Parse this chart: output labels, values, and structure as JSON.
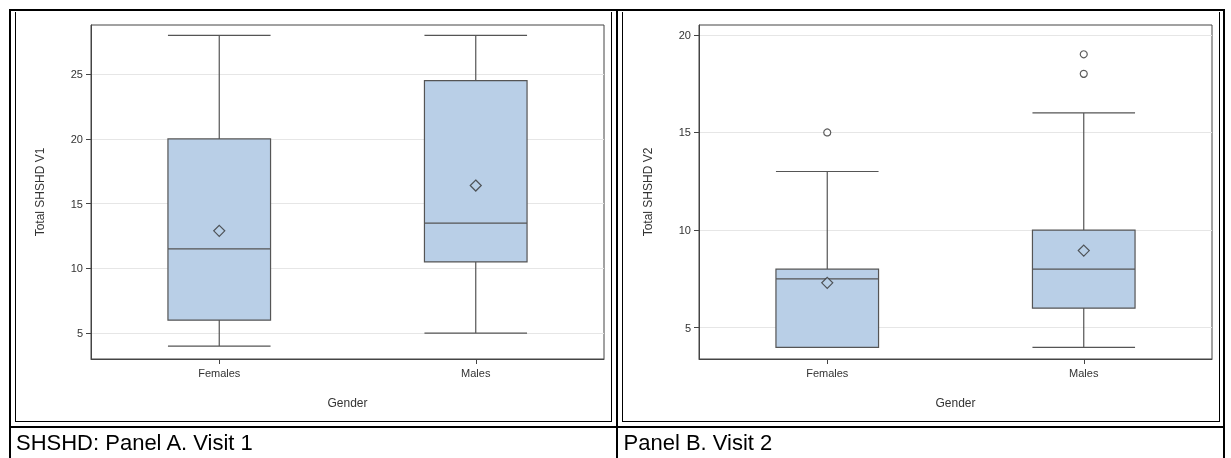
{
  "chart_data": [
    {
      "type": "box",
      "xlabel": "Gender",
      "ylabel": "Total SHSHD V1",
      "categories": [
        "Females",
        "Males"
      ],
      "color": "#b9cfe7",
      "ylim": [
        3,
        28.8
      ],
      "yticks": [
        5,
        10,
        15,
        20,
        25
      ],
      "grid": "y",
      "boxes": [
        {
          "low": 4,
          "q1": 6,
          "median": 11.5,
          "q3": 20,
          "high": 28,
          "mean": 12.9
        },
        {
          "low": 5,
          "q1": 10.5,
          "median": 13.5,
          "q3": 24.5,
          "high": 28,
          "mean": 16.4
        }
      ],
      "annotations": [
        "SHSHD: Panel A. Visit 1"
      ]
    },
    {
      "type": "box",
      "xlabel": "Gender",
      "ylabel": "Total SHSHD V2",
      "categories": [
        "Females",
        "Males"
      ],
      "color": "#b9cfe7",
      "ylim": [
        3.4,
        20.5
      ],
      "yticks": [
        5,
        10,
        15,
        20
      ],
      "grid": "y",
      "boxes": [
        {
          "low": 4,
          "q1": 4,
          "median": 7.5,
          "q3": 8,
          "high": 13,
          "mean": 7.3,
          "outliers": [
            15
          ]
        },
        {
          "low": 4,
          "q1": 6,
          "median": 8,
          "q3": 10,
          "high": 16,
          "mean": 8.95,
          "outliers": [
            18,
            19
          ]
        }
      ],
      "annotations": [
        "Panel B. Visit 2"
      ]
    }
  ]
}
